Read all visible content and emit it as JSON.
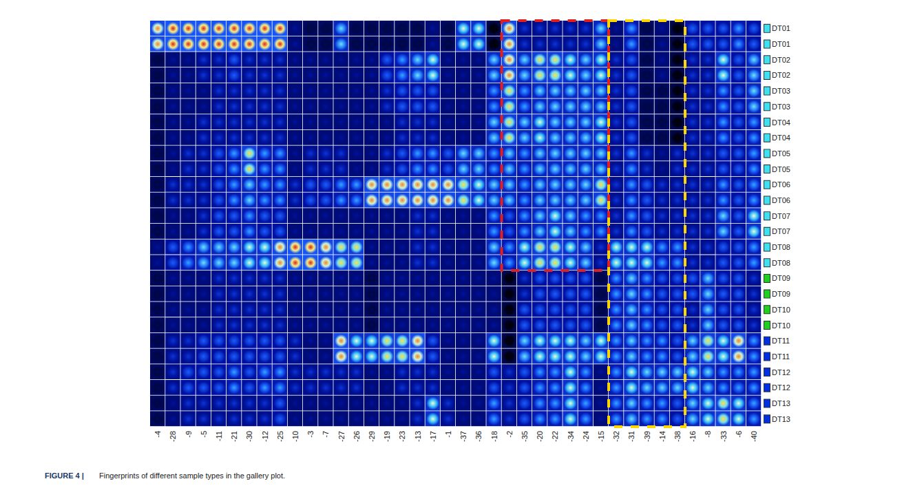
{
  "chart_data": {
    "type": "heatmap",
    "caption": "FIGURE 4 | Fingerprints of different sample types in the gallery plot.",
    "columns": [
      "-4",
      "-28",
      "-9",
      "-5",
      "-11",
      "-21",
      "-30",
      "-12",
      "-25",
      "-10",
      "-3",
      "-7",
      "-27",
      "-26",
      "-29",
      "-19",
      "-23",
      "-13",
      "-17",
      "-1",
      "-37",
      "-36",
      "-18",
      "-2",
      "-35",
      "-20",
      "-22",
      "-34",
      "-24",
      "-15",
      "-32",
      "-31",
      "-39",
      "-14",
      "-38",
      "-16",
      "-8",
      "-33",
      "-6",
      "-40"
    ],
    "rows": [
      "DT01",
      "DT01",
      "DT02",
      "DT02",
      "DT03",
      "DT03",
      "DT04",
      "DT04",
      "DT05",
      "DT05",
      "DT06",
      "DT06",
      "DT07",
      "DT07",
      "DT08",
      "DT08",
      "DT09",
      "DT09",
      "DT10",
      "DT10",
      "DT11",
      "DT11",
      "DT12",
      "DT12",
      "DT13",
      "DT13"
    ],
    "row_colors": [
      "#40e0f0",
      "#40e0f0",
      "#40e0f0",
      "#40e0f0",
      "#40e0f0",
      "#40e0f0",
      "#40e0f0",
      "#40e0f0",
      "#40e0f0",
      "#40e0f0",
      "#40e0f0",
      "#40e0f0",
      "#40e0f0",
      "#40e0f0",
      "#40e0f0",
      "#40e0f0",
      "#20d020",
      "#20d020",
      "#20d020",
      "#20d020",
      "#0030e0",
      "#0030e0",
      "#0030e0",
      "#0030e0",
      "#0030e0",
      "#0030e0"
    ],
    "value_range": [
      0,
      10
    ],
    "cells": [
      [
        9,
        10,
        10,
        10,
        10,
        10,
        10,
        10,
        10,
        2,
        1,
        1,
        6,
        1,
        1,
        1,
        1,
        1,
        2,
        1,
        7,
        7,
        0,
        9,
        3,
        3,
        3,
        3,
        3,
        6,
        2,
        5,
        1,
        2,
        0,
        4,
        4,
        4,
        5,
        4
      ],
      [
        9,
        10,
        10,
        10,
        10,
        10,
        10,
        10,
        10,
        2,
        1,
        1,
        6,
        1,
        1,
        1,
        1,
        1,
        2,
        1,
        7,
        7,
        0,
        9,
        3,
        3,
        3,
        3,
        3,
        6,
        2,
        5,
        1,
        2,
        0,
        4,
        4,
        4,
        5,
        4
      ],
      [
        1,
        2,
        2,
        3,
        3,
        4,
        3,
        3,
        3,
        2,
        2,
        2,
        2,
        2,
        2,
        4,
        5,
        6,
        7,
        2,
        2,
        2,
        6,
        9,
        6,
        8,
        8,
        7,
        6,
        7,
        3,
        4,
        1,
        2,
        0,
        3,
        3,
        7,
        4,
        6
      ],
      [
        1,
        2,
        2,
        3,
        3,
        4,
        3,
        3,
        3,
        2,
        2,
        2,
        2,
        2,
        2,
        4,
        5,
        6,
        7,
        2,
        2,
        2,
        6,
        9,
        6,
        8,
        8,
        7,
        6,
        7,
        3,
        4,
        1,
        2,
        0,
        3,
        3,
        7,
        4,
        6
      ],
      [
        1,
        2,
        2,
        2,
        3,
        3,
        3,
        3,
        3,
        2,
        2,
        2,
        2,
        2,
        2,
        3,
        4,
        4,
        4,
        2,
        2,
        2,
        5,
        8,
        5,
        6,
        6,
        6,
        6,
        6,
        3,
        4,
        1,
        1,
        0,
        3,
        3,
        5,
        4,
        6
      ],
      [
        1,
        2,
        2,
        2,
        3,
        3,
        3,
        3,
        3,
        2,
        2,
        2,
        2,
        2,
        2,
        3,
        4,
        4,
        4,
        2,
        2,
        2,
        5,
        8,
        5,
        6,
        6,
        6,
        6,
        6,
        3,
        4,
        1,
        1,
        0,
        3,
        3,
        5,
        4,
        6
      ],
      [
        1,
        2,
        2,
        3,
        3,
        3,
        3,
        3,
        3,
        2,
        2,
        2,
        2,
        2,
        2,
        2,
        3,
        3,
        3,
        2,
        2,
        2,
        6,
        8,
        6,
        7,
        6,
        6,
        6,
        7,
        3,
        4,
        1,
        1,
        0,
        3,
        3,
        5,
        4,
        5
      ],
      [
        1,
        2,
        2,
        3,
        3,
        3,
        3,
        3,
        3,
        2,
        2,
        2,
        2,
        2,
        2,
        2,
        3,
        3,
        3,
        2,
        2,
        2,
        6,
        8,
        6,
        7,
        6,
        6,
        6,
        7,
        3,
        4,
        1,
        1,
        0,
        3,
        3,
        5,
        4,
        5
      ],
      [
        1,
        2,
        3,
        3,
        4,
        5,
        8,
        5,
        5,
        2,
        3,
        3,
        3,
        2,
        2,
        3,
        4,
        5,
        5,
        4,
        6,
        6,
        5,
        6,
        5,
        6,
        6,
        6,
        6,
        6,
        3,
        5,
        3,
        2,
        3,
        3,
        3,
        4,
        4,
        5
      ],
      [
        1,
        2,
        3,
        3,
        4,
        5,
        8,
        5,
        5,
        2,
        3,
        3,
        3,
        2,
        2,
        3,
        4,
        5,
        5,
        4,
        6,
        6,
        5,
        6,
        5,
        6,
        6,
        6,
        6,
        6,
        3,
        5,
        3,
        2,
        3,
        3,
        3,
        4,
        4,
        5
      ],
      [
        1,
        3,
        3,
        3,
        4,
        5,
        6,
        5,
        5,
        3,
        4,
        4,
        5,
        5,
        9,
        9,
        9,
        9,
        9,
        9,
        8,
        7,
        6,
        6,
        5,
        6,
        6,
        6,
        6,
        8,
        3,
        5,
        4,
        3,
        3,
        3,
        3,
        5,
        4,
        5
      ],
      [
        1,
        3,
        3,
        3,
        4,
        5,
        6,
        5,
        5,
        3,
        4,
        4,
        5,
        5,
        9,
        9,
        9,
        9,
        9,
        9,
        8,
        7,
        6,
        6,
        5,
        6,
        6,
        6,
        6,
        8,
        3,
        5,
        4,
        3,
        3,
        3,
        3,
        5,
        4,
        5
      ],
      [
        1,
        2,
        2,
        3,
        4,
        4,
        5,
        4,
        4,
        2,
        2,
        2,
        2,
        2,
        2,
        2,
        2,
        3,
        3,
        2,
        2,
        2,
        5,
        4,
        5,
        6,
        7,
        6,
        5,
        5,
        3,
        5,
        4,
        3,
        3,
        3,
        3,
        6,
        4,
        7
      ],
      [
        1,
        2,
        2,
        3,
        4,
        4,
        5,
        4,
        4,
        2,
        2,
        2,
        2,
        2,
        2,
        2,
        2,
        3,
        3,
        2,
        2,
        2,
        5,
        4,
        5,
        6,
        7,
        6,
        5,
        5,
        3,
        5,
        4,
        3,
        3,
        3,
        3,
        6,
        4,
        7
      ],
      [
        2,
        4,
        5,
        6,
        6,
        6,
        7,
        7,
        9,
        10,
        10,
        9,
        8,
        8,
        2,
        2,
        2,
        3,
        3,
        2,
        2,
        2,
        6,
        5,
        7,
        8,
        8,
        7,
        6,
        3,
        7,
        7,
        7,
        5,
        5,
        3,
        3,
        4,
        4,
        5
      ],
      [
        2,
        4,
        5,
        6,
        6,
        6,
        7,
        7,
        9,
        10,
        10,
        9,
        8,
        8,
        2,
        2,
        2,
        3,
        3,
        2,
        2,
        2,
        6,
        5,
        7,
        8,
        8,
        7,
        6,
        3,
        7,
        7,
        7,
        5,
        5,
        3,
        3,
        4,
        4,
        5
      ],
      [
        1,
        2,
        2,
        2,
        3,
        3,
        3,
        3,
        3,
        2,
        2,
        2,
        2,
        2,
        1,
        2,
        2,
        2,
        2,
        2,
        2,
        2,
        2,
        0,
        3,
        4,
        4,
        4,
        4,
        1,
        5,
        6,
        5,
        4,
        4,
        4,
        6,
        4,
        4,
        3
      ],
      [
        1,
        2,
        2,
        2,
        3,
        3,
        3,
        3,
        3,
        2,
        2,
        2,
        2,
        2,
        1,
        2,
        2,
        2,
        2,
        2,
        2,
        2,
        2,
        0,
        3,
        4,
        4,
        4,
        4,
        1,
        5,
        6,
        5,
        4,
        4,
        4,
        6,
        4,
        4,
        3
      ],
      [
        1,
        2,
        2,
        2,
        3,
        3,
        3,
        3,
        3,
        2,
        2,
        2,
        2,
        2,
        1,
        2,
        2,
        2,
        2,
        2,
        2,
        2,
        2,
        0,
        4,
        4,
        4,
        4,
        4,
        1,
        5,
        6,
        5,
        4,
        4,
        3,
        6,
        4,
        4,
        3
      ],
      [
        1,
        2,
        2,
        2,
        3,
        3,
        3,
        3,
        3,
        2,
        2,
        2,
        2,
        2,
        1,
        2,
        2,
        2,
        2,
        2,
        2,
        2,
        2,
        0,
        4,
        4,
        4,
        4,
        4,
        1,
        5,
        6,
        5,
        4,
        4,
        3,
        6,
        4,
        4,
        3
      ],
      [
        1,
        3,
        3,
        4,
        4,
        4,
        4,
        4,
        4,
        3,
        2,
        2,
        9,
        7,
        7,
        8,
        8,
        9,
        4,
        2,
        2,
        2,
        7,
        0,
        6,
        7,
        7,
        7,
        6,
        7,
        5,
        6,
        5,
        5,
        4,
        6,
        8,
        7,
        9,
        5
      ],
      [
        1,
        3,
        3,
        4,
        4,
        4,
        4,
        4,
        4,
        3,
        2,
        2,
        9,
        7,
        7,
        8,
        8,
        9,
        4,
        2,
        2,
        2,
        7,
        0,
        6,
        7,
        7,
        7,
        6,
        7,
        5,
        6,
        5,
        5,
        4,
        6,
        8,
        7,
        9,
        5
      ],
      [
        1,
        3,
        4,
        4,
        4,
        5,
        4,
        5,
        5,
        3,
        3,
        3,
        3,
        3,
        2,
        2,
        3,
        3,
        3,
        2,
        2,
        2,
        4,
        3,
        4,
        5,
        5,
        7,
        5,
        2,
        5,
        7,
        6,
        6,
        6,
        7,
        6,
        5,
        5,
        5
      ],
      [
        1,
        3,
        4,
        4,
        4,
        5,
        4,
        5,
        5,
        3,
        3,
        3,
        3,
        3,
        2,
        2,
        3,
        3,
        3,
        2,
        2,
        2,
        4,
        3,
        4,
        5,
        5,
        7,
        5,
        2,
        5,
        7,
        6,
        6,
        6,
        7,
        6,
        5,
        5,
        5
      ],
      [
        1,
        2,
        3,
        3,
        3,
        3,
        3,
        3,
        4,
        2,
        2,
        2,
        2,
        2,
        2,
        2,
        2,
        3,
        7,
        3,
        2,
        2,
        5,
        3,
        4,
        5,
        5,
        7,
        5,
        2,
        5,
        6,
        5,
        5,
        4,
        6,
        7,
        8,
        7,
        5
      ],
      [
        1,
        2,
        3,
        3,
        3,
        3,
        3,
        3,
        4,
        2,
        2,
        2,
        2,
        2,
        2,
        2,
        2,
        3,
        7,
        3,
        2,
        2,
        5,
        3,
        4,
        5,
        5,
        7,
        5,
        2,
        5,
        6,
        5,
        5,
        4,
        6,
        7,
        8,
        7,
        5
      ]
    ],
    "highlights": [
      {
        "color": "#e02020",
        "columns": [
          "-2",
          "-15"
        ],
        "rows": [
          "DT01",
          "DT08"
        ]
      },
      {
        "color": "#ffd700",
        "columns": [
          "-32",
          "-38"
        ],
        "rows": [
          "DT01",
          "DT13"
        ]
      }
    ],
    "grid": false,
    "tick_labels": true
  }
}
